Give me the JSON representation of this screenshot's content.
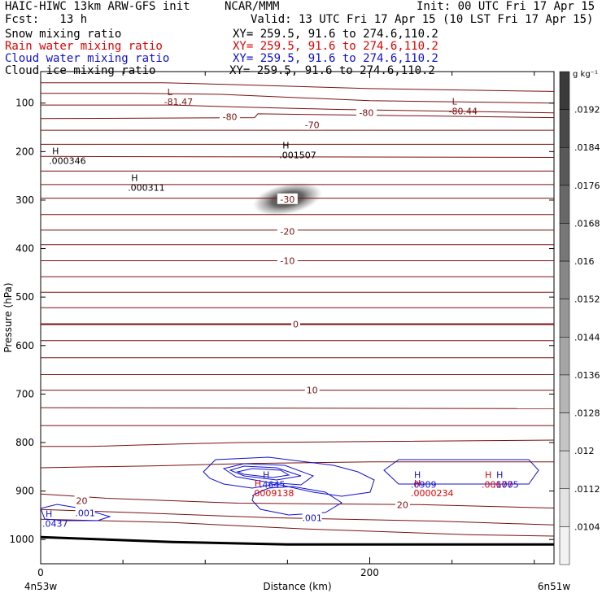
{
  "header": {
    "title_left": "HAIC-HIWC 13km ARW-GFS init",
    "center": "NCAR/MMM",
    "init": "Init: 00 UTC Fri 17 Apr 15",
    "fcst": "Fcst:   13 h",
    "valid": "Valid: 13 UTC Fri 17 Apr 15 (10 LST Fri 17 Apr 15)"
  },
  "legend": [
    {
      "label": "Snow mixing ratio",
      "xy": "XY= 259.5, 91.6 to 274.6,110.2",
      "color": "#000000"
    },
    {
      "label": "Rain water mixing ratio",
      "xy": "XY= 259.5, 91.6 to 274.6,110.2",
      "color": "#e00000"
    },
    {
      "label": "Cloud water mixing ratio",
      "xy": "XY= 259.5, 91.6 to 274.6,110.2",
      "color": "#1010d0"
    },
    {
      "label": "Cloud ice mixing ratio",
      "xy": "XY= 259.5, 91.6 to 274.6,110.2",
      "color": "#000000"
    }
  ],
  "chart_data": {
    "type": "cross-section contour",
    "xlabel": "Distance (km)",
    "ylabel": "Pressure (hPa)",
    "x_ticks": [
      0,
      200
    ],
    "xlim": [
      0,
      312
    ],
    "y_ticks": [
      100,
      200,
      300,
      400,
      500,
      600,
      700,
      800,
      900,
      1000
    ],
    "ylim": [
      1050,
      35
    ],
    "y_scale": "linear pressure, inverted",
    "start_label": "4n53w",
    "end_label": "6n51w",
    "colorbar": {
      "unit": "g kg⁻¹",
      "ticks": [
        ".0192",
        ".0184",
        ".0176",
        ".0168",
        ".016",
        ".0152",
        ".0144",
        ".0136",
        ".0128",
        ".012",
        ".0112",
        ".0104"
      ]
    },
    "temperature_contours": [
      {
        "value": "-80",
        "x": 115,
        "p": 128
      },
      {
        "value": "-80",
        "x": 198,
        "p": 120
      },
      {
        "value": "-70",
        "x": 165,
        "p": 145
      },
      {
        "value": "-30",
        "x": 150,
        "p": 298
      },
      {
        "value": "-20",
        "x": 150,
        "p": 365
      },
      {
        "value": "-10",
        "x": 150,
        "p": 425
      },
      {
        "value": "0",
        "x": 155,
        "p": 556
      },
      {
        "value": "10",
        "x": 165,
        "p": 692
      },
      {
        "value": "20",
        "x": 25,
        "p": 920
      },
      {
        "value": "20",
        "x": 220,
        "p": 928
      }
    ],
    "extrema_labels": [
      {
        "mark": "L",
        "value": "-81.47",
        "x": 75,
        "p": 90,
        "color": "#7a1010"
      },
      {
        "mark": "L",
        "value": "-80.44",
        "x": 248,
        "p": 110,
        "color": "#7a1010"
      },
      {
        "mark": "H",
        "value": ".000346",
        "x": 5,
        "p": 212,
        "color": "#000000"
      },
      {
        "mark": "H",
        "value": ".001507",
        "x": 145,
        "p": 200,
        "color": "#000000"
      },
      {
        "mark": "H",
        "value": ".000311",
        "x": 53,
        "p": 267,
        "color": "#000000"
      },
      {
        "mark": "H",
        "value": ".4645",
        "x": 133,
        "p": 880,
        "color": "#1010d0"
      },
      {
        "mark": "H",
        "value": ".0009138",
        "x": 128,
        "p": 897,
        "color": "#e00000"
      },
      {
        "mark": "H",
        "value": ".0909",
        "x": 225,
        "p": 880,
        "color": "#1010d0"
      },
      {
        "mark": "H",
        "value": ".0000234",
        "x": 225,
        "p": 897,
        "color": "#e00000"
      },
      {
        "mark": "H",
        "value": ".00677",
        "x": 268,
        "p": 880,
        "color": "#e00000"
      },
      {
        "mark": "H",
        "value": ".1005",
        "x": 275,
        "p": 880,
        "color": "#1010d0"
      },
      {
        "mark": "H",
        "value": ".0437",
        "x": 1,
        "p": 960,
        "color": "#1010d0"
      }
    ],
    "cloud_water_labels": [
      {
        "value": ".001",
        "x": 27,
        "p": 945
      },
      {
        "value": ".001",
        "x": 165,
        "p": 955
      }
    ]
  }
}
